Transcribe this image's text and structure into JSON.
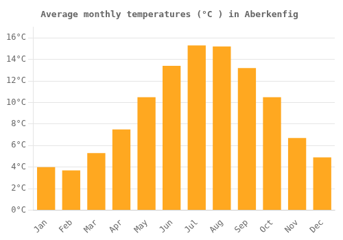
{
  "chart_data": {
    "type": "bar",
    "title": "Average monthly temperatures (°C ) in Aberkenfig",
    "categories": [
      "Jan",
      "Feb",
      "Mar",
      "Apr",
      "May",
      "Jun",
      "Jul",
      "Aug",
      "Sep",
      "Oct",
      "Nov",
      "Dec"
    ],
    "values": [
      4.0,
      3.7,
      5.3,
      7.5,
      10.5,
      13.4,
      15.3,
      15.2,
      13.2,
      10.5,
      6.7,
      4.9
    ],
    "color": "#FFA820",
    "ylim": [
      0,
      17.0
    ],
    "yticks": [
      {
        "value": 0,
        "label": "0°C"
      },
      {
        "value": 2,
        "label": "2°C"
      },
      {
        "value": 4,
        "label": "4°C"
      },
      {
        "value": 6,
        "label": "6°C"
      },
      {
        "value": 8,
        "label": "8°C"
      },
      {
        "value": 10,
        "label": "10°C"
      },
      {
        "value": 12,
        "label": "12°C"
      },
      {
        "value": 14,
        "label": "14°C"
      },
      {
        "value": 16,
        "label": "16°C"
      }
    ],
    "grid": true
  }
}
